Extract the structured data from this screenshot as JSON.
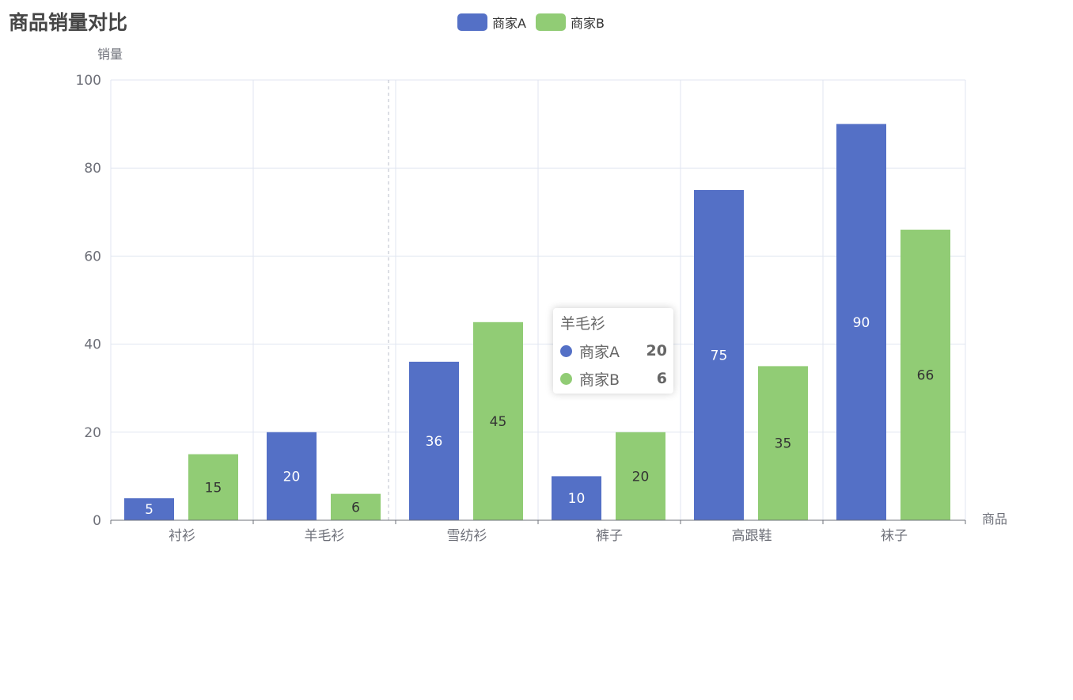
{
  "chart_data": {
    "type": "bar",
    "title": "商品销量对比",
    "xlabel": "商品",
    "ylabel": "销量",
    "categories": [
      "衬衫",
      "羊毛衫",
      "雪纺衫",
      "裤子",
      "高跟鞋",
      "袜子"
    ],
    "series": [
      {
        "name": "商家A",
        "color": "#5470c6",
        "values": [
          5,
          20,
          36,
          10,
          75,
          90
        ]
      },
      {
        "name": "商家B",
        "color": "#91cc75",
        "values": [
          15,
          6,
          45,
          20,
          35,
          66
        ]
      }
    ],
    "ylim": [
      0,
      100
    ],
    "yticks": [
      0,
      20,
      40,
      60,
      80,
      100
    ],
    "grid": true,
    "legend_position": "top-center",
    "data_labels": "inside"
  },
  "tooltip": {
    "title": "羊毛衫",
    "rows": [
      {
        "name": "商家A",
        "value": "20",
        "color": "#5470c6"
      },
      {
        "name": "商家B",
        "value": "6",
        "color": "#91cc75"
      }
    ]
  }
}
